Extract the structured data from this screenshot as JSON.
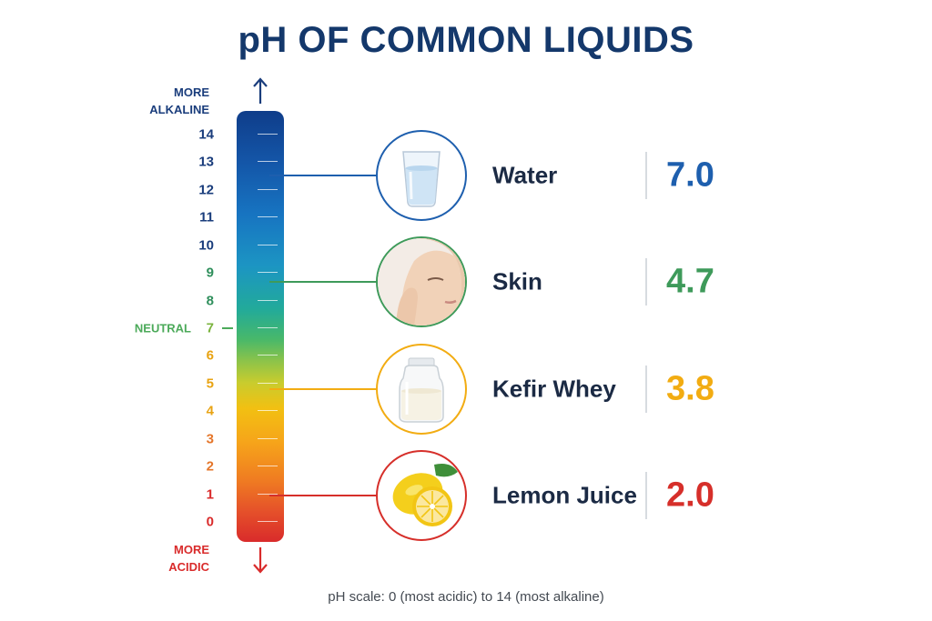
{
  "colors": {
    "title": "#14386b",
    "alkaline": "#1a3d7c",
    "acidic": "#d92b2b",
    "neutral": "#4caa5a",
    "water": "#1e5fae",
    "skin": "#3e9a5a",
    "kefir": "#f2ac12",
    "lemon": "#d62f2a"
  },
  "chart_data": {
    "type": "bar",
    "title": "pH OF COMMON LIQUIDS",
    "scale": {
      "min": 0,
      "max": 14,
      "ticks": [
        "0",
        "1",
        "2",
        "3",
        "4",
        "5",
        "6",
        "7",
        "8",
        "9",
        "10",
        "11",
        "12",
        "13",
        "14"
      ],
      "top_label": "MORE ALKALINE",
      "bottom_label": "MORE ACIDIC",
      "neutral_label": "NEUTRAL",
      "neutral_value": 7
    },
    "categories": [
      "Water",
      "Skin",
      "Kefir Whey",
      "Lemon Juice"
    ],
    "values": [
      7.0,
      4.7,
      3.8,
      2.0
    ],
    "value_labels": [
      "7.0",
      "4.7",
      "3.8",
      "2.0"
    ],
    "footnote": "pH scale: 0 (most acidic) to 14 (most alkaline)"
  }
}
